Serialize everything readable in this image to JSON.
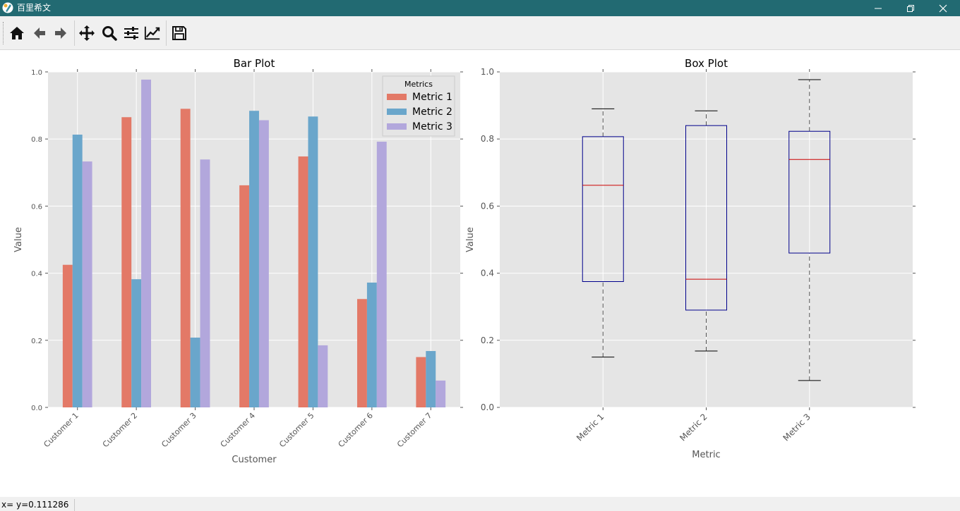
{
  "window": {
    "title": "百里希文",
    "minimize_icon": "minimize-icon",
    "maximize_icon": "restore-icon",
    "close_icon": "close-icon"
  },
  "toolbar": {
    "items": [
      {
        "name": "home-button",
        "icon": "home-icon",
        "tooltip": "Reset original view"
      },
      {
        "name": "back-button",
        "icon": "arrow-left-icon",
        "tooltip": "Back to previous view"
      },
      {
        "name": "forward-button",
        "icon": "arrow-right-icon",
        "tooltip": "Forward to next view"
      },
      {
        "name": "pan-button",
        "icon": "move-icon",
        "tooltip": "Pan axes"
      },
      {
        "name": "zoom-button",
        "icon": "magnifier-icon",
        "tooltip": "Zoom to rectangle"
      },
      {
        "name": "subplots-button",
        "icon": "sliders-icon",
        "tooltip": "Configure subplots"
      },
      {
        "name": "axes-button",
        "icon": "line-chart-icon",
        "tooltip": "Edit axis, curve and image parameters"
      },
      {
        "name": "save-button",
        "icon": "floppy-disk-icon",
        "tooltip": "Save the figure"
      }
    ]
  },
  "status": {
    "text": "x= y=0.111286"
  },
  "chart_data": [
    {
      "type": "bar",
      "title": "Bar Plot",
      "xlabel": "Customer",
      "ylabel": "Value",
      "ylim": [
        0,
        1.0
      ],
      "yticks": [
        "0.0",
        "0.2",
        "0.4",
        "0.6",
        "0.8",
        "1.0"
      ],
      "grid": true,
      "legend": {
        "title": "Metrics",
        "position": "top-right"
      },
      "categories": [
        "Customer 1",
        "Customer 2",
        "Customer 3",
        "Customer 4",
        "Customer 5",
        "Customer 6",
        "Customer 7"
      ],
      "series": [
        {
          "name": "Metric 1",
          "color": "#e37967",
          "values": [
            0.425,
            0.865,
            0.89,
            0.662,
            0.748,
            0.323,
            0.15
          ]
        },
        {
          "name": "Metric 2",
          "color": "#6aa6cb",
          "values": [
            0.813,
            0.382,
            0.208,
            0.884,
            0.867,
            0.372,
            0.168
          ]
        },
        {
          "name": "Metric 3",
          "color": "#b2a7dc",
          "values": [
            0.733,
            0.977,
            0.739,
            0.856,
            0.185,
            0.792,
            0.08
          ]
        }
      ]
    },
    {
      "type": "box",
      "title": "Box Plot",
      "xlabel": "Metric",
      "ylabel": "Value",
      "ylim": [
        0,
        1.0
      ],
      "yticks": [
        "0.0",
        "0.2",
        "0.4",
        "0.6",
        "0.8",
        "1.0"
      ],
      "grid": true,
      "categories": [
        "Metric 1",
        "Metric 2",
        "Metric 3"
      ],
      "boxes": [
        {
          "name": "Metric 1",
          "whisker_low": 0.15,
          "q1": 0.375,
          "median": 0.662,
          "q3": 0.807,
          "whisker_high": 0.89
        },
        {
          "name": "Metric 2",
          "whisker_low": 0.168,
          "q1": 0.29,
          "median": 0.382,
          "q3": 0.84,
          "whisker_high": 0.884
        },
        {
          "name": "Metric 3",
          "whisker_low": 0.08,
          "q1": 0.46,
          "median": 0.739,
          "q3": 0.823,
          "whisker_high": 0.977
        }
      ],
      "box_color": "#00008b",
      "median_color": "#cc0000",
      "whisker_color": "#000000"
    }
  ]
}
